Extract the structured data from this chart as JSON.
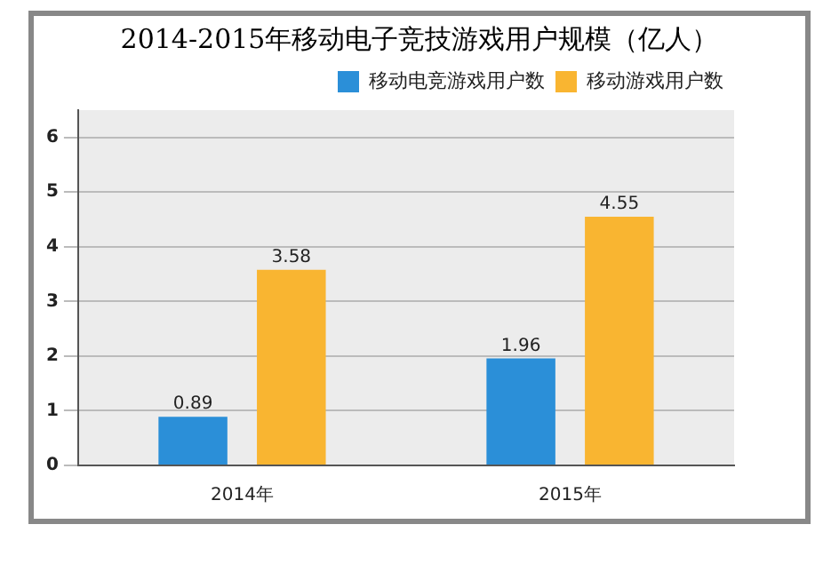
{
  "chart_data": {
    "type": "bar",
    "title": "2014-2015年移动电子竞技游戏用户规模（亿人）",
    "categories": [
      "2014年",
      "2015年"
    ],
    "series": [
      {
        "name": "移动电竞游戏用户数",
        "color": "#2b8fd8",
        "values": [
          0.89,
          1.96
        ]
      },
      {
        "name": "移动游戏用户数",
        "color": "#f9b531",
        "values": [
          3.58,
          4.55
        ]
      }
    ],
    "ylim": [
      0,
      6.5
    ],
    "yticks": [
      0,
      1,
      2,
      3,
      4,
      5,
      6
    ],
    "grid": "y",
    "legend": "top right",
    "data_labels": true
  }
}
